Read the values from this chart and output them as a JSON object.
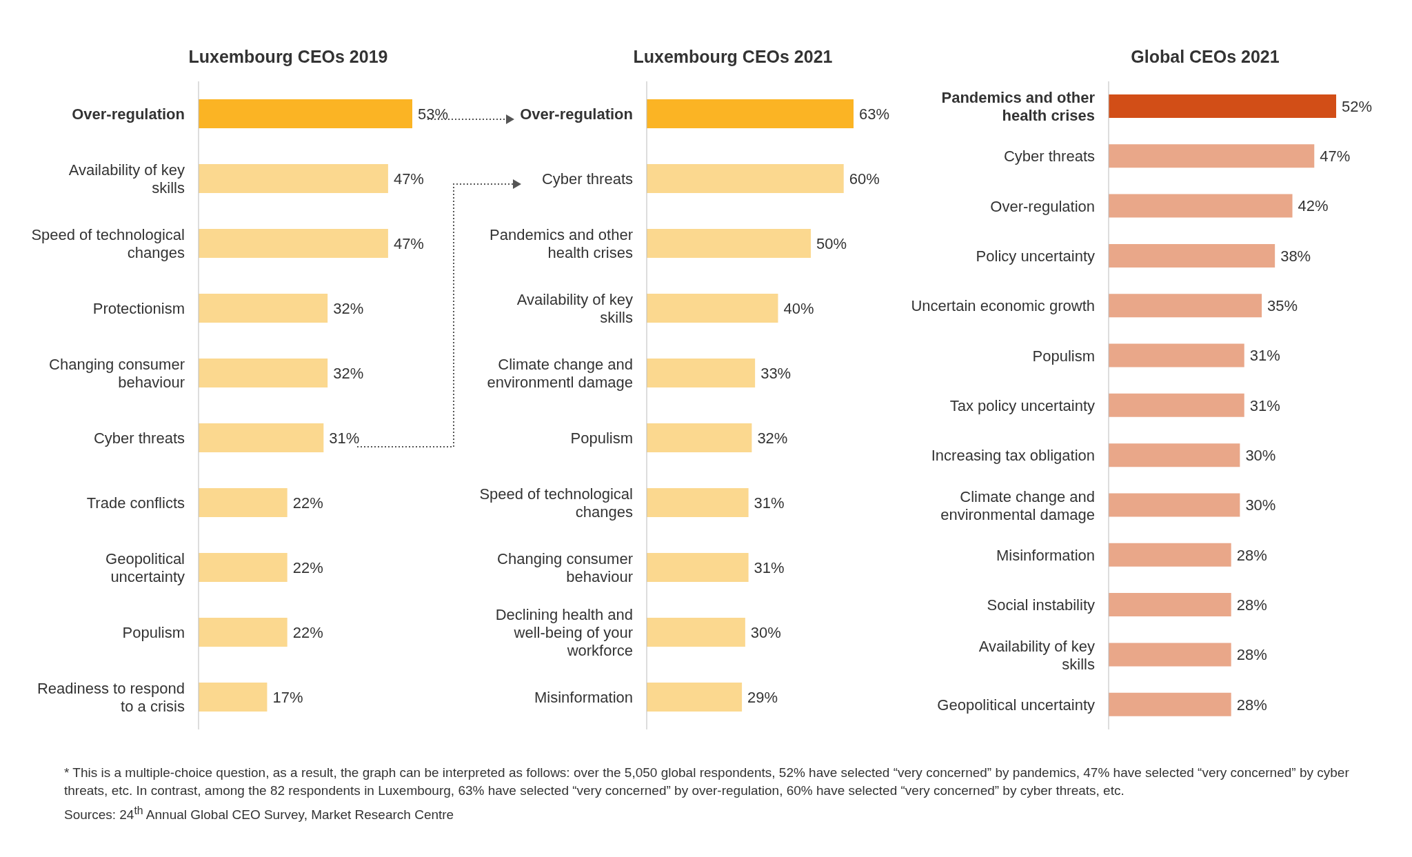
{
  "chart_data": [
    {
      "type": "bar",
      "orientation": "horizontal",
      "title": "Luxembourg CEOs 2019",
      "categories": [
        "Over-regulation",
        "Availability of key skills",
        "Speed of technological changes",
        "Protectionism",
        "Changing consumer behaviour",
        "Cyber threats",
        "Trade conflicts",
        "Geopolitical uncertainty",
        "Populism",
        "Readiness to respond to a crisis"
      ],
      "values": [
        53,
        47,
        47,
        32,
        32,
        31,
        22,
        22,
        22,
        17
      ],
      "colors": [
        "#fbb424",
        "#fbd88f",
        "#fbd88f",
        "#fbd88f",
        "#fbd88f",
        "#fbd88f",
        "#fbd88f",
        "#fbd88f",
        "#fbd88f",
        "#fbd88f"
      ],
      "value_labels": [
        "53%",
        "47%",
        "47%",
        "32%",
        "32%",
        "31%",
        "22%",
        "22%",
        "22%",
        "17%"
      ]
    },
    {
      "type": "bar",
      "orientation": "horizontal",
      "title": "Luxembourg CEOs 2021",
      "categories": [
        "Over-regulation",
        "Cyber threats",
        "Pandemics and other health crises",
        "Availability of key skills",
        "Climate change and environmentl damage",
        "Populism",
        "Speed of technological changes",
        "Changing consumer behaviour",
        "Declining health and well-being of your workforce",
        "Misinformation"
      ],
      "values": [
        63,
        60,
        50,
        40,
        33,
        32,
        31,
        31,
        30,
        29
      ],
      "colors": [
        "#fbb424",
        "#fbd88f",
        "#fbd88f",
        "#fbd88f",
        "#fbd88f",
        "#fbd88f",
        "#fbd88f",
        "#fbd88f",
        "#fbd88f",
        "#fbd88f"
      ],
      "value_labels": [
        "63%",
        "60%",
        "50%",
        "40%",
        "33%",
        "32%",
        "31%",
        "31%",
        "30%",
        "29%"
      ]
    },
    {
      "type": "bar",
      "orientation": "horizontal",
      "title": "Global CEOs 2021",
      "categories": [
        "Pandemics and other health crises",
        "Cyber threats",
        "Over-regulation",
        "Policy uncertainty",
        "Uncertain economic growth",
        "Populism",
        "Tax policy uncertainty",
        "Increasing tax obligation",
        "Climate change and environmental damage",
        "Misinformation",
        "Social instability",
        "Availability of key skills",
        "Geopolitical uncertainty"
      ],
      "values": [
        52,
        47,
        42,
        38,
        35,
        31,
        31,
        30,
        30,
        28,
        28,
        28,
        28
      ],
      "colors": [
        "#d24e17",
        "#e9a789",
        "#e9a789",
        "#e9a789",
        "#e9a789",
        "#e9a789",
        "#e9a789",
        "#e9a789",
        "#e9a789",
        "#e9a789",
        "#e9a789",
        "#e9a789",
        "#e9a789"
      ],
      "value_labels": [
        "52%",
        "47%",
        "42%",
        "38%",
        "35%",
        "31%",
        "31%",
        "30%",
        "30%",
        "28%",
        "28%",
        "28%",
        "28%"
      ],
      "annotations": [
        "* This is a multiple-choice question, as a result, the graph can be interpreted as follows: over the 5,050 global respondents, 52% have selected “very concerned” by pandemics, 47% have selected “very concerned” by cyber threats, etc. In contrast, among the 82 respondents in Luxembourg, 63% have selected “very concerned” by over-regulation, 60% have selected “very concerned” by cyber threats, etc.",
        "Sources: 24$^{th}$ Annual Global CEO Survey, Market Research Centre"
      ]
    }
  ]
}
